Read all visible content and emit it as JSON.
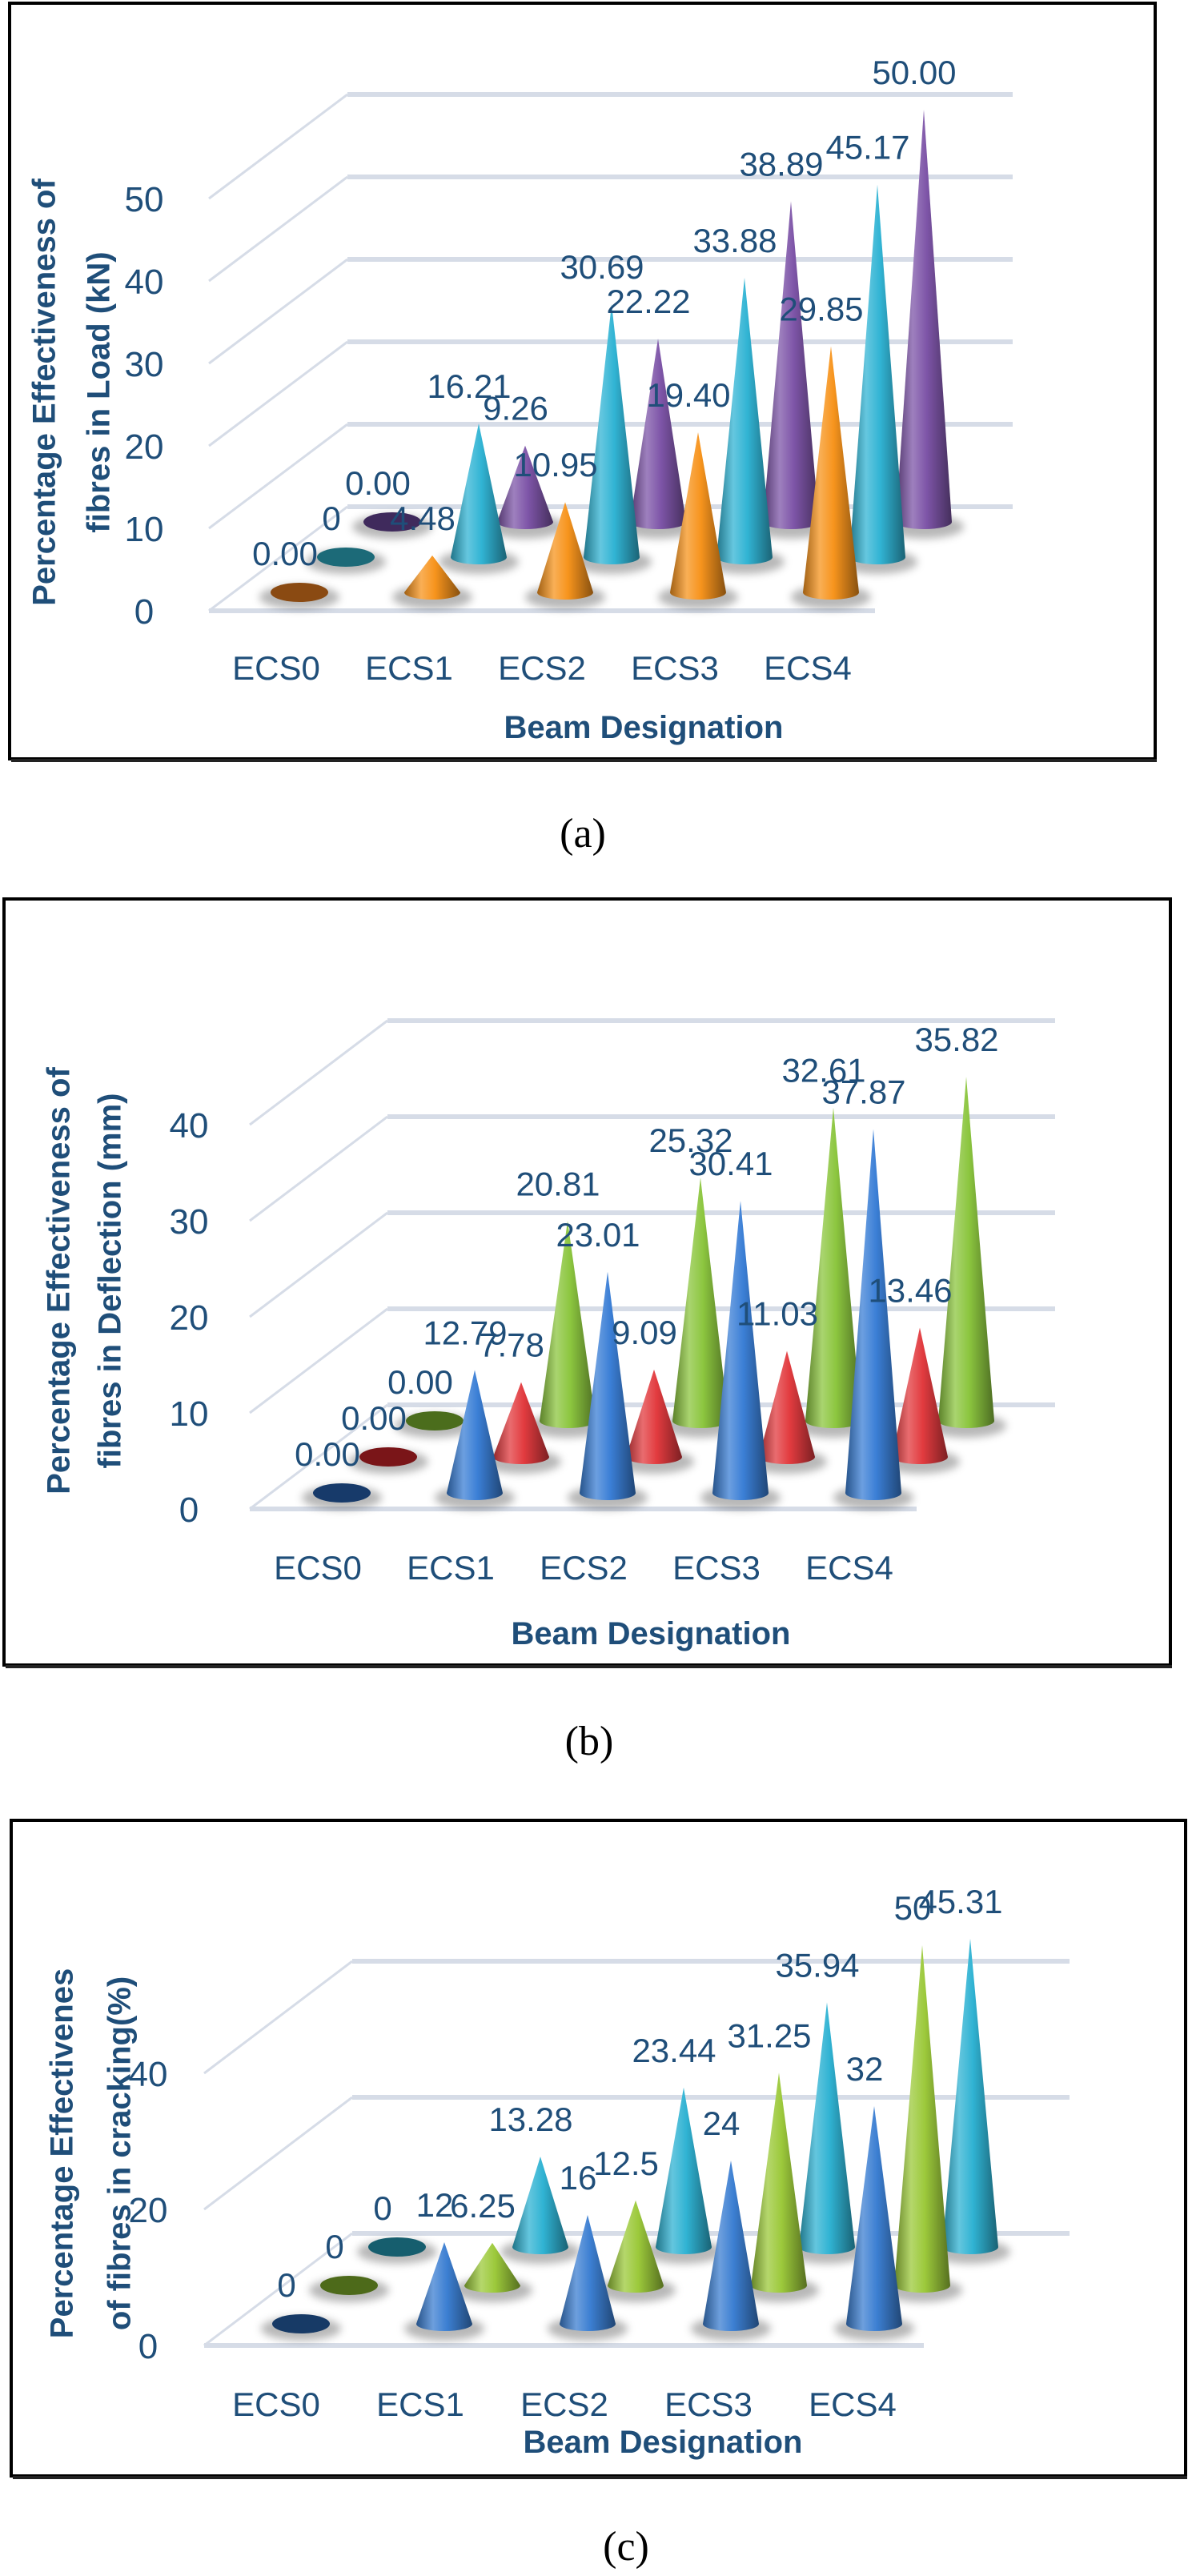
{
  "chart_data": [
    {
      "type": "bar",
      "mark": "3d-cone",
      "panel_label": "(a)",
      "xlabel": "Beam Designation",
      "ylabel": [
        "Percentage Effectiveness of",
        "fibres  in Load (kN)"
      ],
      "categories": [
        "ECS0",
        "ECS1",
        "ECS2",
        "ECS3",
        "ECS4"
      ],
      "yticks": [
        "0",
        "10",
        "20",
        "30",
        "40",
        "50"
      ],
      "ylim": [
        0,
        50
      ],
      "grid": true,
      "series": [
        {
          "color": "#f7941d",
          "zero_color": "#8a4a12",
          "values": [
            0,
            4.48,
            10.95,
            19.4,
            29.85
          ],
          "labels": [
            "0.00",
            "4.48",
            "10.95",
            "19.40",
            "29.85"
          ]
        },
        {
          "color": "#31b4d4",
          "zero_color": "#1c6a78",
          "values": [
            0,
            16.21,
            30.69,
            33.88,
            45.17
          ],
          "labels": [
            "0",
            "16.21",
            "30.69",
            "33.88",
            "45.17"
          ]
        },
        {
          "color": "#7e55a8",
          "zero_color": "#3f2a5c",
          "values": [
            0,
            9.26,
            22.22,
            38.89,
            50.0
          ],
          "labels": [
            "0.00",
            "9.26",
            "22.22",
            "38.89",
            "50.00"
          ]
        }
      ]
    },
    {
      "type": "bar",
      "mark": "3d-cone",
      "panel_label": "(b)",
      "xlabel": "Beam Designation",
      "ylabel": [
        "Percentage Effectiveness of",
        "fibres  in Deflection (mm)"
      ],
      "categories": [
        "ECS0",
        "ECS1",
        "ECS2",
        "ECS3",
        "ECS4"
      ],
      "yticks": [
        "0",
        "10",
        "20",
        "30",
        "40"
      ],
      "ylim": [
        0,
        40
      ],
      "grid": true,
      "series": [
        {
          "color": "#3b7fd6",
          "zero_color": "#173a6a",
          "values": [
            0,
            12.79,
            23.01,
            30.41,
            37.87
          ],
          "labels": [
            "0.00",
            "12.79",
            "23.01",
            "30.41",
            "37.87"
          ]
        },
        {
          "color": "#e23b3f",
          "zero_color": "#7a1518",
          "values": [
            0,
            7.78,
            9.09,
            11.03,
            13.46
          ],
          "labels": [
            "0.00",
            "7.78",
            "9.09",
            "11.03",
            "13.46"
          ]
        },
        {
          "color": "#8cc63f",
          "zero_color": "#4b6d1c",
          "values": [
            0,
            20.81,
            25.32,
            32.61,
            35.82
          ],
          "labels": [
            "0.00",
            "20.81",
            "25.32",
            "32.61",
            "35.82"
          ]
        }
      ]
    },
    {
      "type": "bar",
      "mark": "3d-cone",
      "panel_label": "(c)",
      "xlabel": "Beam Designation",
      "ylabel": [
        "Percentage Effectivenes",
        "of fibres in cracking(%)"
      ],
      "categories": [
        "ECS0",
        "ECS1",
        "ECS2",
        "ECS3",
        "ECS4"
      ],
      "yticks": [
        "0",
        "20",
        "40"
      ],
      "ylim": [
        0,
        40
      ],
      "grid": true,
      "series": [
        {
          "color": "#3c7fd2",
          "zero_color": "#173a66",
          "values": [
            0,
            12,
            16,
            24,
            32
          ],
          "labels": [
            "0",
            "12",
            "16",
            "24",
            "32"
          ]
        },
        {
          "color": "#9cc93b",
          "zero_color": "#4d6a1a",
          "values": [
            0,
            6.25,
            12.5,
            31.25,
            50
          ],
          "labels": [
            "0",
            "6.25",
            "12.5",
            "31.25",
            "50"
          ]
        },
        {
          "color": "#30b3d3",
          "zero_color": "#165e6e",
          "values": [
            0,
            13.28,
            23.44,
            35.94,
            45.31
          ],
          "labels": [
            "0",
            "13.28",
            "23.44",
            "35.94",
            "45.31"
          ]
        }
      ]
    }
  ]
}
